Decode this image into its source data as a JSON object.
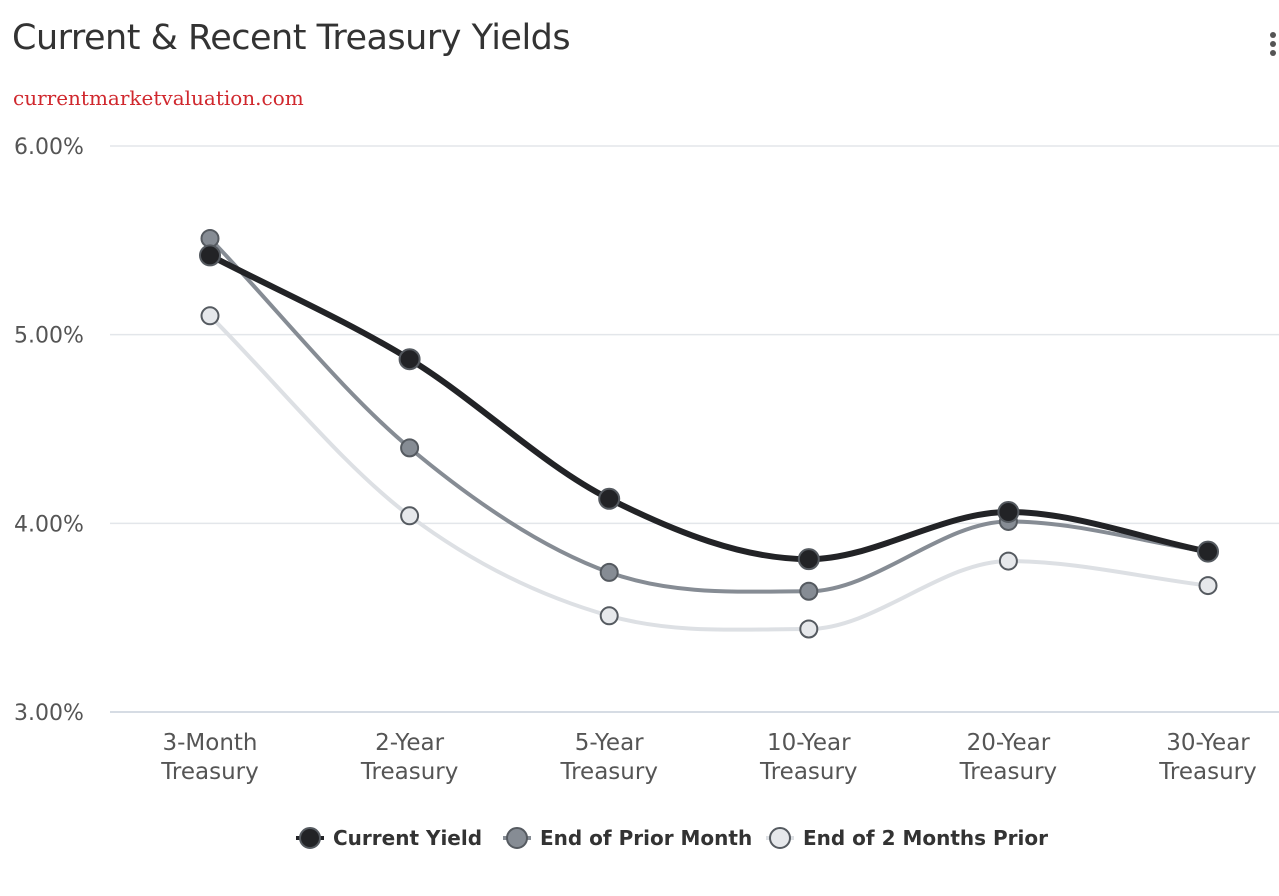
{
  "header": {
    "title": "Current & Recent Treasury Yields",
    "subtitle": "currentmarketvaluation.com",
    "menu_icon": "vertical-dots-menu-icon"
  },
  "chart_data": {
    "type": "line",
    "categories": [
      [
        "3-Month",
        "Treasury"
      ],
      [
        "2-Year",
        "Treasury"
      ],
      [
        "5-Year",
        "Treasury"
      ],
      [
        "10-Year",
        "Treasury"
      ],
      [
        "20-Year",
        "Treasury"
      ],
      [
        "30-Year",
        "Treasury"
      ]
    ],
    "ylim": [
      3.0,
      6.0
    ],
    "yticks": [
      3.0,
      4.0,
      5.0,
      6.0
    ],
    "ytick_labels": [
      "3.00%",
      "4.00%",
      "5.00%",
      "6.00%"
    ],
    "grid": true,
    "legend_position": "bottom-center",
    "series": [
      {
        "name": "End of 2 Months Prior",
        "color": "#dde0e4",
        "marker_fill": "#e6e8eb",
        "values": [
          5.1,
          4.04,
          3.51,
          3.44,
          3.8,
          3.67
        ]
      },
      {
        "name": "End of Prior Month",
        "color": "#868c94",
        "marker_fill": "#868c94",
        "values": [
          5.51,
          4.4,
          3.74,
          3.64,
          4.01,
          3.85
        ]
      },
      {
        "name": "Current Yield",
        "color": "#222326",
        "marker_fill": "#222326",
        "values": [
          5.42,
          4.87,
          4.13,
          3.81,
          4.06,
          3.85
        ]
      }
    ],
    "legend_order": [
      "Current Yield",
      "End of Prior Month",
      "End of 2 Months Prior"
    ]
  }
}
